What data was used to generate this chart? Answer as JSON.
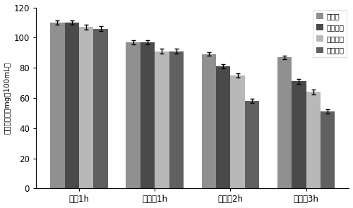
{
  "categories": [
    "灌酒1h",
    "灌酸奶1h",
    "灌酸奶2h",
    "灌酸奶3h"
  ],
  "series": [
    {
      "label": "对照组",
      "values": [
        110,
        97,
        89,
        87
      ],
      "errors": [
        1.5,
        1.5,
        1.2,
        1.2
      ],
      "color": "#909090"
    },
    {
      "label": "低剂量组",
      "values": [
        110,
        97,
        81,
        71
      ],
      "errors": [
        1.5,
        1.5,
        1.5,
        1.5
      ],
      "color": "#4a4a4a"
    },
    {
      "label": "中剂量组",
      "values": [
        107,
        91,
        75,
        64
      ],
      "errors": [
        1.5,
        1.5,
        1.5,
        1.5
      ],
      "color": "#b8b8b8"
    },
    {
      "label": "高剂量组",
      "values": [
        106,
        91,
        58,
        51
      ],
      "errors": [
        1.5,
        1.5,
        1.5,
        1.5
      ],
      "color": "#606060"
    }
  ],
  "ylabel": "乙醇含量／（mg／100mL）",
  "ylim": [
    0,
    120
  ],
  "yticks": [
    0,
    20,
    40,
    60,
    80,
    100,
    120
  ],
  "bar_width": 0.19,
  "figsize": [
    5.0,
    2.95
  ],
  "dpi": 100,
  "background_color": "#ffffff"
}
